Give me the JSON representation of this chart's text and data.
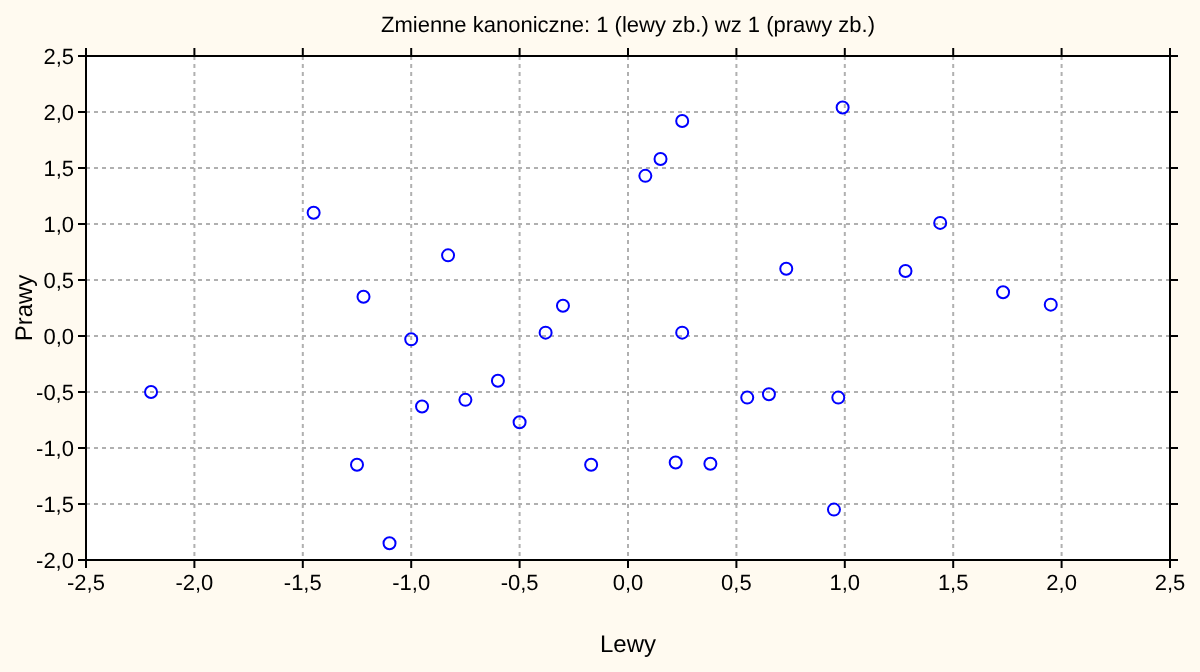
{
  "chart_data": {
    "type": "scatter",
    "title": "Zmienne kanoniczne: 1 (lewy zb.) wz 1 (prawy zb.)",
    "xlabel": "Lewy",
    "ylabel": "Prawy",
    "marker": "circle",
    "grid": true,
    "x": [
      -2.2,
      -1.45,
      -1.22,
      -1.25,
      -1.1,
      -0.83,
      -1.0,
      -0.95,
      -0.75,
      -0.6,
      -0.5,
      -0.3,
      -0.38,
      -0.17,
      0.08,
      0.15,
      0.25,
      0.25,
      0.22,
      0.38,
      0.55,
      0.65,
      0.73,
      0.97,
      0.95,
      0.99,
      1.28,
      1.44,
      1.73,
      1.95
    ],
    "series": [
      {
        "color": "#0000ff",
        "values": [
          -0.5,
          1.1,
          0.35,
          -1.15,
          -1.85,
          0.72,
          -0.03,
          -0.63,
          -0.57,
          -0.4,
          -0.77,
          0.27,
          0.03,
          -1.15,
          1.43,
          1.58,
          1.92,
          0.03,
          -1.13,
          -1.14,
          -0.55,
          -0.52,
          0.6,
          -0.55,
          -1.55,
          2.04,
          0.58,
          1.01,
          0.39,
          0.28
        ]
      }
    ],
    "xlim": [
      -2.5,
      2.5
    ],
    "ylim": [
      -2.0,
      2.5
    ],
    "xticks": [
      {
        "value": -2.5,
        "label": "-2,5"
      },
      {
        "value": -2,
        "label": "-2,0"
      },
      {
        "value": -1.5,
        "label": "-1,5"
      },
      {
        "value": -1,
        "label": "-1,0"
      },
      {
        "value": -0.5,
        "label": "-0,5"
      },
      {
        "value": 0,
        "label": "0,0"
      },
      {
        "value": 0.5,
        "label": "0,5"
      },
      {
        "value": 1,
        "label": "1,0"
      },
      {
        "value": 1.5,
        "label": "1,5"
      },
      {
        "value": 2,
        "label": "2,0"
      },
      {
        "value": 2.5,
        "label": "2,5"
      }
    ],
    "yticks": [
      {
        "value": -2,
        "label": "-2,0"
      },
      {
        "value": -1.5,
        "label": "-1,5"
      },
      {
        "value": -1,
        "label": "-1,0"
      },
      {
        "value": -0.5,
        "label": "-0,5"
      },
      {
        "value": 0,
        "label": "0,0"
      },
      {
        "value": 0.5,
        "label": "0,5"
      },
      {
        "value": 1,
        "label": "1,0"
      },
      {
        "value": 1.5,
        "label": "1,5"
      },
      {
        "value": 2,
        "label": "2,0"
      },
      {
        "value": 2.5,
        "label": "2,5"
      }
    ]
  }
}
